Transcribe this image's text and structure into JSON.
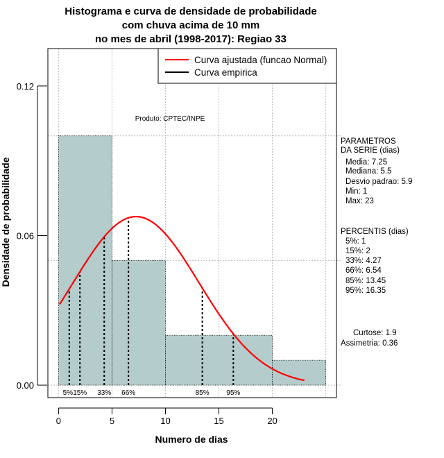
{
  "chart_data": {
    "type": "bar",
    "title": [
      "Histograma e curva de densidade de probabilidade",
      "com chuva acima de 10 mm",
      "no mes de abril (1998-2017): Regiao 33"
    ],
    "xlabel": "Numero de dias",
    "ylabel": "Densidade de probabilidade",
    "xlim": [
      -1,
      26
    ],
    "ylim": [
      -0.005,
      0.135
    ],
    "xticks": [
      "0",
      "5",
      "10",
      "15",
      "20"
    ],
    "xtick_values": [
      0,
      5,
      10,
      15,
      20
    ],
    "yticks": [
      "0.00",
      "0.06",
      "0.12"
    ],
    "ytick_values": [
      0,
      0.06,
      0.12
    ],
    "grid": true,
    "bins": [
      {
        "from": 0,
        "to": 5,
        "density": 0.1
      },
      {
        "from": 5,
        "to": 10,
        "density": 0.05
      },
      {
        "from": 10,
        "to": 20,
        "density": 0.02
      },
      {
        "from": 20,
        "to": 25,
        "density": 0.01
      }
    ],
    "normal_curve": {
      "mean": 7.25,
      "sd": 5.9,
      "from": 0.1,
      "to": 23,
      "color": "#ff0000"
    },
    "percentiles": [
      {
        "label": "5%",
        "value": 1
      },
      {
        "label": "15%",
        "value": 2
      },
      {
        "label": "33%",
        "value": 4.27
      },
      {
        "label": "66%",
        "value": 6.54
      },
      {
        "label": "85%",
        "value": 13.45
      },
      {
        "label": "95%",
        "value": 16.35
      }
    ],
    "legend": {
      "placement": "top-right",
      "entries": [
        {
          "label": "Curva ajustada (funcao Normal)",
          "color": "#ff0000"
        },
        {
          "label": "Curva empirica",
          "color": "#000000"
        }
      ]
    },
    "annotation": "Produto: CPTEC/INPE",
    "bar_color": "#b4cccc"
  },
  "stats": {
    "params_title": [
      "PARAMETROS",
      "DA SERIE (dias)"
    ],
    "params": [
      "Media: 7.25",
      "Mediana: 5.5",
      "Desvio padrao: 5.9",
      "Min: 1",
      "Max: 23"
    ],
    "percentis_title": "PERCENTIS (dias)",
    "percentis": [
      "5%: 1",
      "15%: 2",
      "33%: 4.27",
      "66%: 6.54",
      "85%: 13.45",
      "95%: 16.35"
    ],
    "curtose": "Curtose: 1.9",
    "assimetria": "Assimetria: 0.36"
  }
}
